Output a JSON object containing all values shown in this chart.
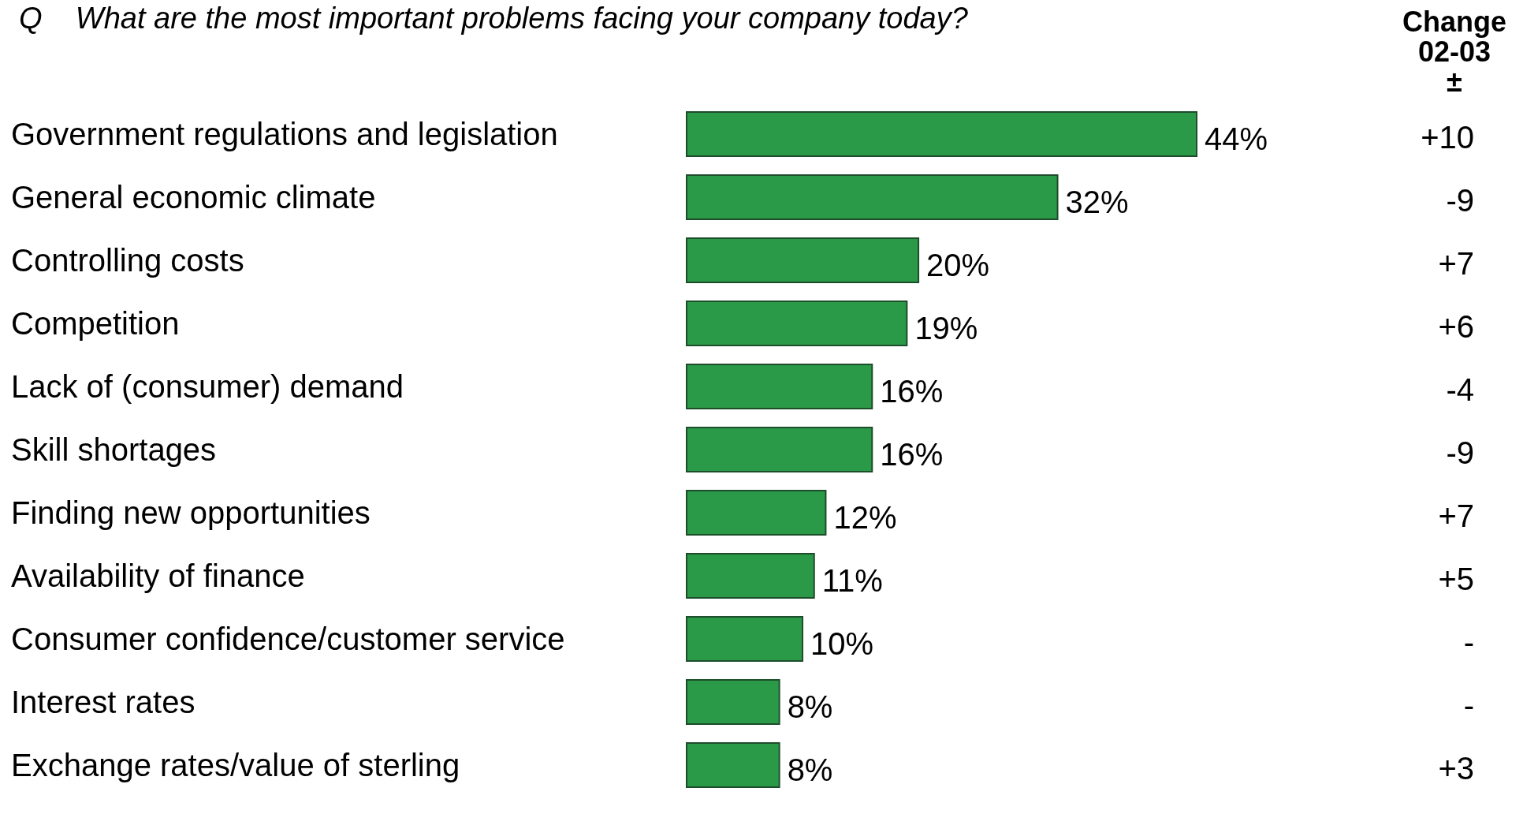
{
  "chart_data": {
    "type": "bar",
    "orientation": "horizontal",
    "title": "Q    What are the most important problems facing your company today?",
    "categories": [
      "Government regulations and legislation",
      "General economic climate",
      "Controlling costs",
      "Competition",
      "Lack of (consumer) demand",
      "Skill shortages",
      "Finding new opportunities",
      "Availability of finance",
      "Consumer confidence/customer service",
      "Interest rates",
      "Exchange rates/value of sterling"
    ],
    "values": [
      44,
      32,
      20,
      19,
      16,
      16,
      12,
      11,
      10,
      8,
      8
    ],
    "value_labels": [
      "44%",
      "32%",
      "20%",
      "19%",
      "16%",
      "16%",
      "12%",
      "11%",
      "10%",
      "8%",
      "8%"
    ],
    "color": "#2b9a48",
    "annotations": [
      "Change\n02-03\n±",
      "+10",
      "-9",
      "+7",
      "+6",
      "-4",
      "-9",
      "+7",
      "+5",
      "-",
      "-",
      "+3"
    ]
  }
}
